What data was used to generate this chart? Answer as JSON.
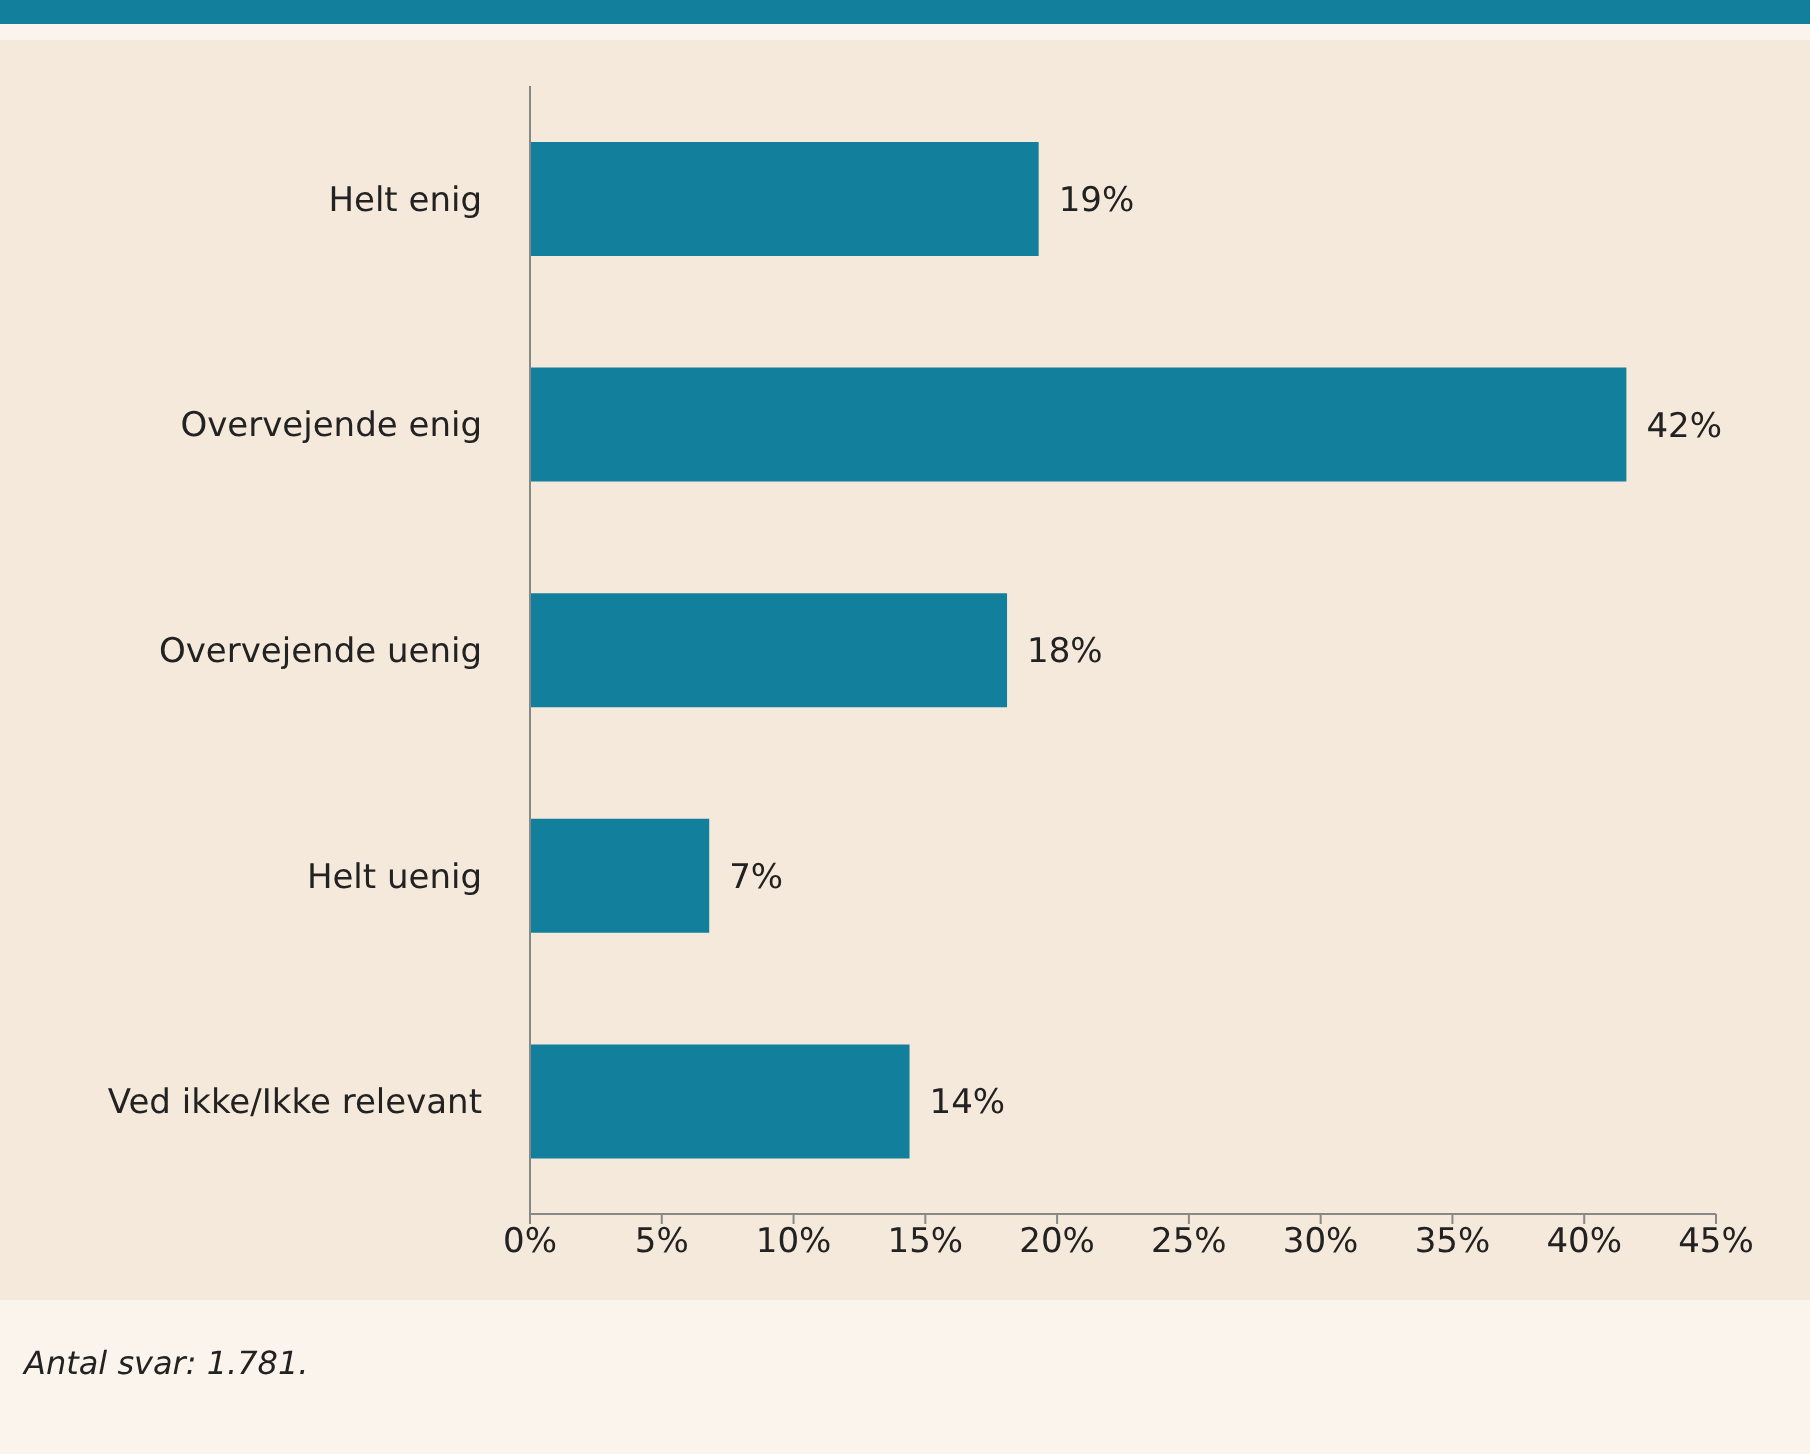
{
  "chart_data": {
    "type": "bar",
    "orientation": "horizontal",
    "categories": [
      "Helt enig",
      "Overvejende enig",
      "Overvejende uenig",
      "Helt uenig",
      "Ved ikke/Ikke relevant"
    ],
    "values": [
      19.3,
      41.6,
      18.1,
      6.8,
      14.4
    ],
    "value_labels": [
      "19%",
      "42%",
      "18%",
      "7%",
      "14%"
    ],
    "color": "#127f9c",
    "xlim": [
      0,
      45
    ],
    "xticks": [
      {
        "value": 0,
        "label": "0%"
      },
      {
        "value": 5,
        "label": "5%"
      },
      {
        "value": 10,
        "label": "10%"
      },
      {
        "value": 15,
        "label": "15%"
      },
      {
        "value": 20,
        "label": "20%"
      },
      {
        "value": 25,
        "label": "25%"
      },
      {
        "value": 30,
        "label": "30%"
      },
      {
        "value": 35,
        "label": "35%"
      },
      {
        "value": 40,
        "label": "40%"
      },
      {
        "value": 45,
        "label": "45%"
      }
    ],
    "grid": false,
    "legend": false,
    "annotations": [
      "Antal svar: 1.781."
    ]
  }
}
